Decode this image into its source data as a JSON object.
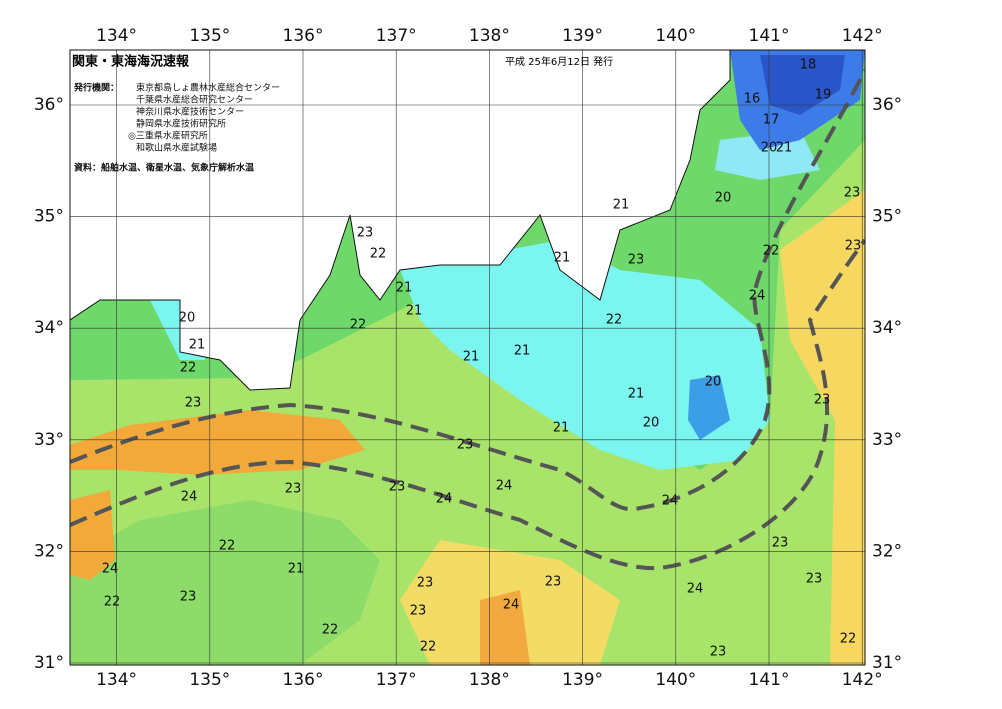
{
  "header": {
    "title": "関東・東海海況速報",
    "date": "平成 25年6月12日 発行"
  },
  "issuers": {
    "label": "発行機関：",
    "items": [
      "東京都島しょ農林水産総合センター",
      "千葉県水産総合研究センター",
      "神奈川県水産技術センター",
      "静岡県水産技術研究所",
      "◎三重県水産研究所",
      "和歌山県水産試験場"
    ]
  },
  "source": "資料：船舶水温、衛星水温、気象庁解析水温",
  "axes": {
    "lon_ticks": [
      {
        "value": 134,
        "label": "134°"
      },
      {
        "value": 135,
        "label": "135°"
      },
      {
        "value": 136,
        "label": "136°"
      },
      {
        "value": 137,
        "label": "137°"
      },
      {
        "value": 138,
        "label": "138°"
      },
      {
        "value": 139,
        "label": "139°"
      },
      {
        "value": 140,
        "label": "140°"
      },
      {
        "value": 141,
        "label": "141°"
      },
      {
        "value": 142,
        "label": "142°"
      }
    ],
    "lat_ticks": [
      {
        "value": 31,
        "label": "31°"
      },
      {
        "value": 32,
        "label": "32°"
      },
      {
        "value": 33,
        "label": "33°"
      },
      {
        "value": 34,
        "label": "34°"
      },
      {
        "value": 35,
        "label": "35°"
      },
      {
        "value": 36,
        "label": "36°"
      }
    ]
  },
  "contour_labels": [
    18,
    19,
    16,
    17,
    20,
    21,
    23,
    20,
    21,
    23,
    23,
    22,
    22,
    21,
    23,
    21,
    24,
    21,
    20,
    22,
    22,
    21,
    21,
    21,
    22,
    20,
    21,
    23,
    23,
    20,
    21,
    23,
    24,
    23,
    23,
    24,
    24,
    24,
    22,
    23,
    21,
    24,
    23,
    23,
    23,
    24,
    22,
    23,
    24,
    23,
    22,
    22,
    22,
    23
  ]
}
